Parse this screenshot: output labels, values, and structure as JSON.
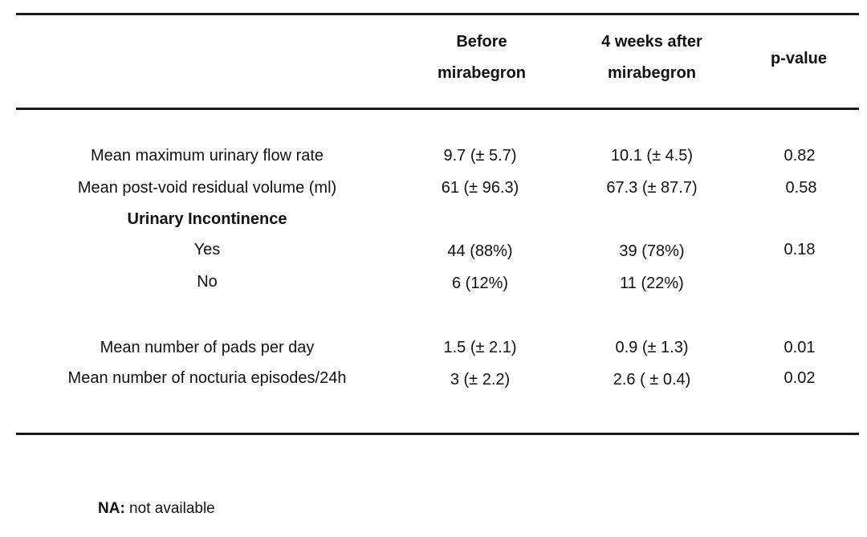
{
  "headers": {
    "before": [
      "Before",
      "mirabegron"
    ],
    "after": [
      "4 weeks after",
      "mirabegron"
    ],
    "pvalue": "p-value"
  },
  "rows": [
    {
      "label": "Mean maximum urinary flow rate",
      "before": "9.7 (± 5.7)",
      "after": "10.1 (± 4.5)",
      "p": "0.82"
    },
    {
      "label": "Mean post-void residual volume (ml)",
      "before": "61 (± 96.3)",
      "after": "67.3 (± 87.7)",
      "p": "0.58"
    },
    {
      "label": "Urinary Incontinence",
      "before": "",
      "after": "",
      "p": ""
    },
    {
      "label": "Yes",
      "before": "44 (88%)",
      "after": "39 (78%)",
      "p": "0.18"
    },
    {
      "label": "No",
      "before": "6 (12%)",
      "after": "11 (22%)",
      "p": ""
    },
    {
      "label": "Mean number of pads per day",
      "before": "1.5 (± 2.1)",
      "after": "0.9 (± 1.3)",
      "p": "0.01"
    },
    {
      "label": "Mean number of nocturia episodes/24h",
      "before": "3 (± 2.2)",
      "after": "2.6 ( ± 0.4)",
      "p": "0.02"
    }
  ],
  "footnote": {
    "abbr": "NA:",
    "text": " not available"
  }
}
